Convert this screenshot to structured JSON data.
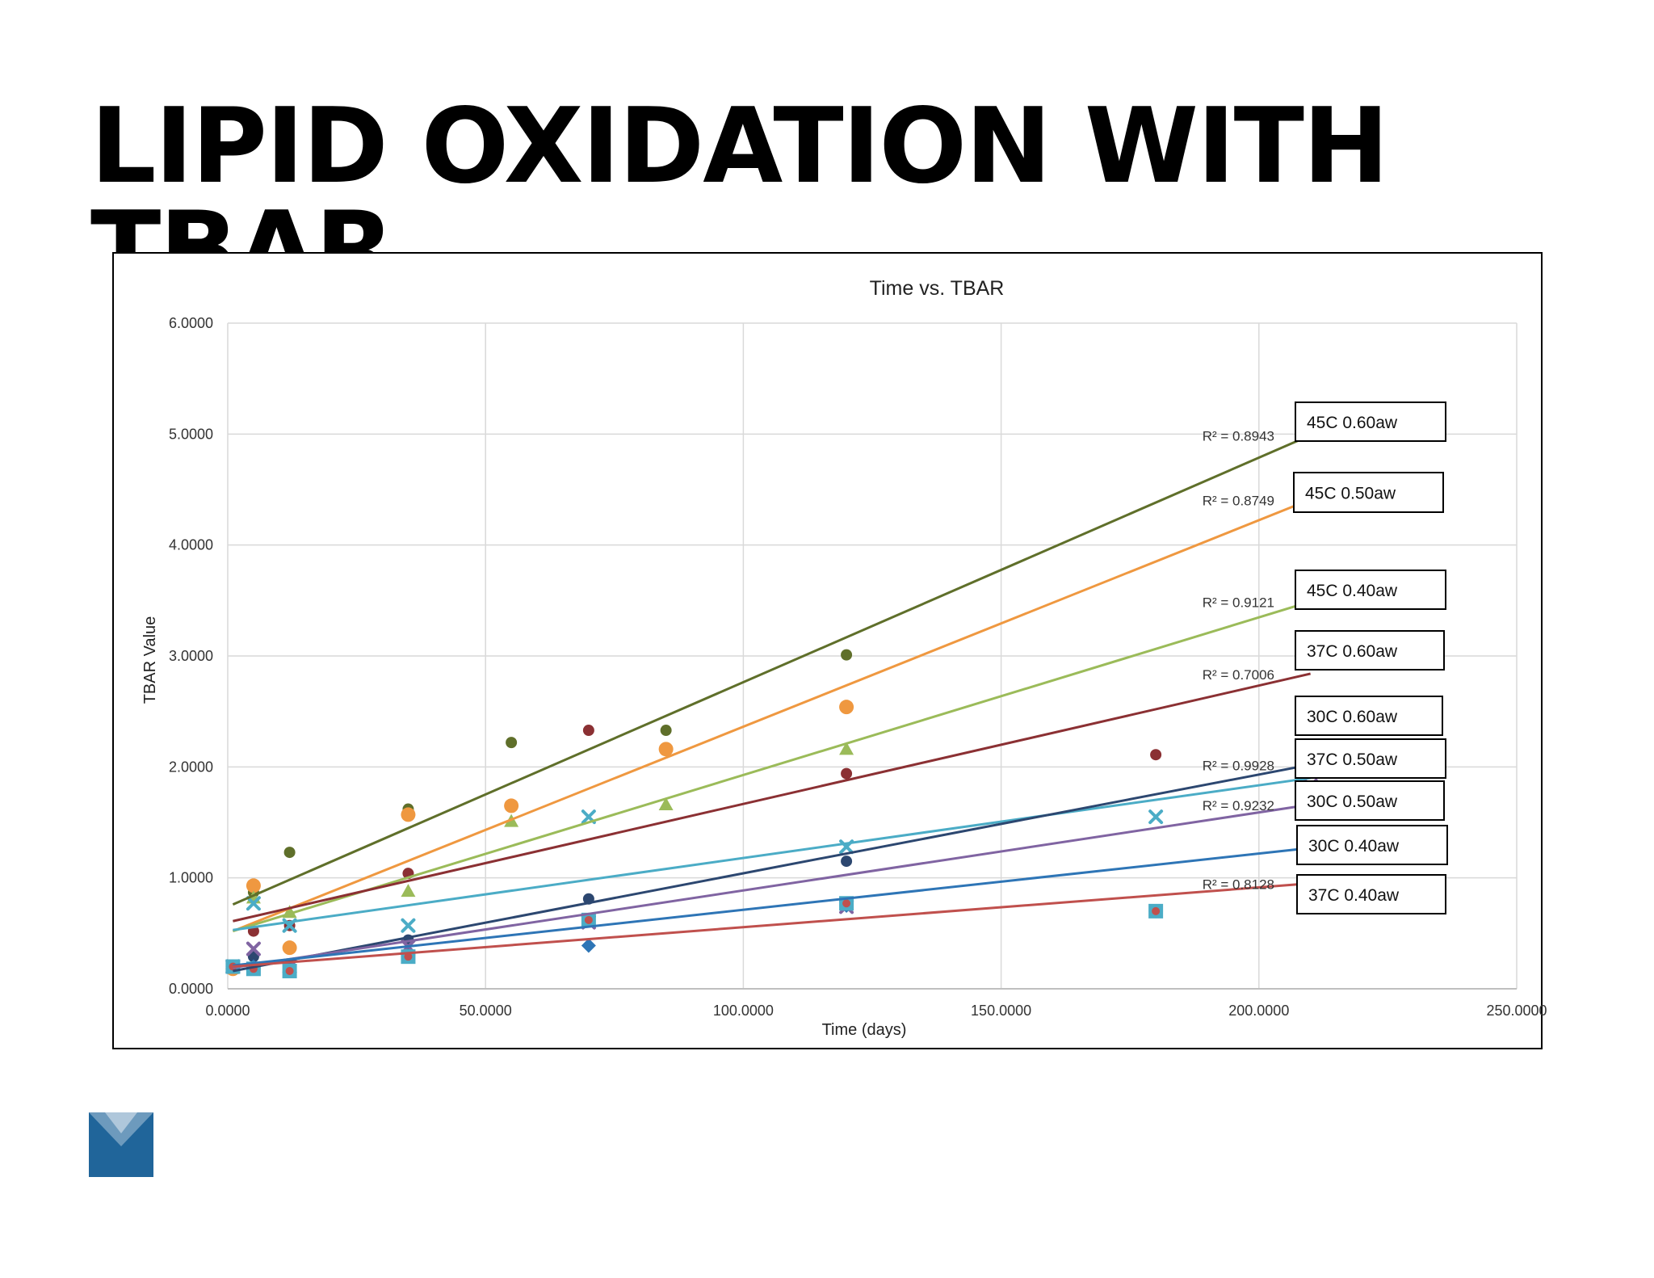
{
  "slide": {
    "title": "LIPID OXIDATION WITH TBAR",
    "logo_icon": "blue-square-v-logo-icon"
  },
  "colors": {
    "45C 0.60aw": "#5f6f2a",
    "45C 0.50aw": "#ef9840",
    "45C 0.40aw": "#9bbb59",
    "37C 0.60aw": "#8b3033",
    "30C 0.60aw": "#4bacc6",
    "37C 0.50aw": "#2c4770",
    "30C 0.50aw": "#8064a2",
    "30C 0.40aw": "#2e75b6",
    "37C 0.40aw": "#c0504d",
    "grid": "#d9d9d9",
    "logo": "#20659a"
  },
  "chart_data": {
    "type": "scatter",
    "title": "Time vs. TBAR",
    "xlabel": "Time (days)",
    "ylabel": "TBAR Value",
    "xlim": [
      0,
      250
    ],
    "ylim": [
      0,
      6
    ],
    "x_ticks": [
      "0.0000",
      "50.0000",
      "100.0000",
      "150.0000",
      "200.0000",
      "250.0000"
    ],
    "y_ticks": [
      "0.0000",
      "1.0000",
      "2.0000",
      "3.0000",
      "4.0000",
      "5.0000",
      "6.0000"
    ],
    "grid": true,
    "legend_position": "right",
    "series": [
      {
        "name": "45C 0.60aw",
        "marker": "circle",
        "r2_label": "R² = 0.8943",
        "points": [
          [
            1,
            0.2
          ],
          [
            5,
            0.87
          ],
          [
            12,
            1.23
          ],
          [
            35,
            1.62
          ],
          [
            55,
            2.22
          ],
          [
            85,
            2.33
          ],
          [
            120,
            3.01
          ]
        ],
        "trend": {
          "x0": 1,
          "y0": 0.76,
          "x1": 210,
          "y1": 4.99
        }
      },
      {
        "name": "45C 0.50aw",
        "marker": "circle-large",
        "r2_label": "R² = 0.8749",
        "points": [
          [
            1,
            0.18
          ],
          [
            5,
            0.93
          ],
          [
            12,
            0.37
          ],
          [
            35,
            1.57
          ],
          [
            55,
            1.65
          ],
          [
            85,
            2.16
          ],
          [
            120,
            2.54
          ]
        ],
        "trend": {
          "x0": 1,
          "y0": 0.52,
          "x1": 210,
          "y1": 4.41
        }
      },
      {
        "name": "45C 0.40aw",
        "marker": "triangle",
        "r2_label": "R² = 0.9121",
        "points": [
          [
            1,
            0.2
          ],
          [
            5,
            0.82
          ],
          [
            12,
            0.69
          ],
          [
            35,
            0.88
          ],
          [
            55,
            1.51
          ],
          [
            85,
            1.66
          ],
          [
            120,
            2.16
          ]
        ],
        "trend": {
          "x0": 1,
          "y0": 0.52,
          "x1": 210,
          "y1": 3.49
        }
      },
      {
        "name": "37C 0.60aw",
        "marker": "circle",
        "r2_label": "R² = 0.7006",
        "points": [
          [
            1,
            0.2
          ],
          [
            5,
            0.52
          ],
          [
            12,
            0.57
          ],
          [
            35,
            1.04
          ],
          [
            70,
            2.33
          ],
          [
            120,
            1.94
          ],
          [
            180,
            2.11
          ]
        ],
        "trend": {
          "x0": 1,
          "y0": 0.61,
          "x1": 210,
          "y1": 2.84
        }
      },
      {
        "name": "30C 0.60aw",
        "marker": "x",
        "r2_label": "",
        "points": [
          [
            1,
            0.2
          ],
          [
            5,
            0.77
          ],
          [
            12,
            0.57
          ],
          [
            35,
            0.57
          ],
          [
            70,
            1.55
          ],
          [
            120,
            1.28
          ],
          [
            180,
            1.55
          ]
        ],
        "trend": {
          "x0": 1,
          "y0": 0.53,
          "x1": 210,
          "y1": 1.9
        }
      },
      {
        "name": "37C 0.50aw",
        "marker": "circle",
        "r2_label": "R² = 0.9928",
        "points": [
          [
            1,
            0.2
          ],
          [
            5,
            0.29
          ],
          [
            12,
            0.22
          ],
          [
            35,
            0.44
          ],
          [
            70,
            0.81
          ],
          [
            120,
            1.15
          ],
          [
            210,
            2.05
          ]
        ],
        "trend": {
          "x0": 1,
          "y0": 0.16,
          "x1": 210,
          "y1": 2.02
        }
      },
      {
        "name": "30C 0.50aw",
        "marker": "x",
        "r2_label": "R² = 0.9232",
        "points": [
          [
            1,
            0.2
          ],
          [
            5,
            0.36
          ],
          [
            12,
            0.2
          ],
          [
            35,
            0.38
          ],
          [
            70,
            0.6
          ],
          [
            120,
            0.74
          ],
          [
            210,
            1.83
          ]
        ],
        "trend": {
          "x0": 1,
          "y0": 0.19,
          "x1": 210,
          "y1": 1.66
        }
      },
      {
        "name": "30C 0.40aw",
        "marker": "diamond",
        "r2_label": "",
        "points": [
          [
            1,
            0.2
          ],
          [
            5,
            0.2
          ],
          [
            12,
            0.18
          ],
          [
            35,
            0.3
          ],
          [
            70,
            0.39
          ],
          [
            120,
            0.75
          ],
          [
            180,
            0.7
          ],
          [
            210,
            1.35
          ]
        ],
        "trend": {
          "x0": 1,
          "y0": 0.21,
          "x1": 210,
          "y1": 1.27
        }
      },
      {
        "name": "37C 0.40aw",
        "marker": "square-dot",
        "r2_label": "R² = 0.8128",
        "points": [
          [
            1,
            0.2
          ],
          [
            5,
            0.18
          ],
          [
            12,
            0.16
          ],
          [
            35,
            0.29
          ],
          [
            70,
            0.62
          ],
          [
            120,
            0.77
          ],
          [
            180,
            0.7
          ]
        ],
        "trend": {
          "x0": 1,
          "y0": 0.2,
          "x1": 210,
          "y1": 0.95
        }
      }
    ],
    "legend_boxes": [
      {
        "series": "45C 0.60aw",
        "label": "45C 0.60aw"
      },
      {
        "series": "45C 0.50aw",
        "label": "45C 0.50aw"
      },
      {
        "series": "45C 0.40aw",
        "label": "45C 0.40aw"
      },
      {
        "series": "37C 0.60aw",
        "label": "37C 0.60aw"
      },
      {
        "series": "30C 0.60aw",
        "label": "30C 0.60aw"
      },
      {
        "series": "37C 0.50aw",
        "label": "37C 0.50aw"
      },
      {
        "series": "30C 0.50aw",
        "label": "30C 0.50aw"
      },
      {
        "series": "30C 0.40aw",
        "label": "30C 0.40aw"
      },
      {
        "series": "37C 0.40aw",
        "label": "37C 0.40aw"
      }
    ]
  }
}
